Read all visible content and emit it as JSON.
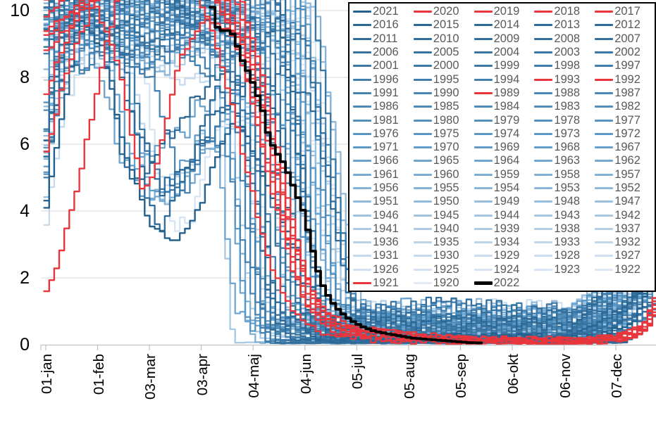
{
  "chart_data": {
    "type": "line",
    "title": "",
    "description_visible": "Seasonal curves, one line per year 1920-2021 in blue shades, selected years in red, year 2022 as thick black line",
    "y_axis": {
      "tick_labels": [
        "10",
        "8",
        "6",
        "4",
        "2",
        "0"
      ],
      "tick_values": [
        10,
        8,
        6,
        4,
        2,
        0
      ],
      "min": 0,
      "max": 10,
      "grid": true
    },
    "x_axis": {
      "tick_labels": [
        "01-jan",
        "01-feb",
        "03-mar",
        "03-apr",
        "04-maj",
        "04-jun",
        "05-jul",
        "05-aug",
        "05-sep",
        "06-okt",
        "06-nov",
        "07-dec"
      ],
      "tick_days": [
        1,
        32,
        62,
        93,
        124,
        155,
        186,
        217,
        248,
        279,
        310,
        341
      ]
    },
    "legend": {
      "position": "top-right",
      "columns": 5,
      "labels": [
        "2021",
        "2020",
        "2019",
        "2018",
        "2017",
        "2016",
        "2015",
        "2014",
        "2013",
        "2012",
        "2011",
        "2010",
        "2009",
        "2008",
        "2007",
        "2006",
        "2005",
        "2004",
        "2003",
        "2002",
        "2001",
        "2000",
        "1999",
        "1998",
        "1997",
        "1996",
        "1995",
        "1994",
        "1993",
        "1992",
        "1991",
        "1990",
        "1989",
        "1988",
        "1987",
        "1986",
        "1985",
        "1984",
        "1983",
        "1982",
        "1981",
        "1980",
        "1979",
        "1978",
        "1977",
        "1976",
        "1975",
        "1974",
        "1973",
        "1972",
        "1971",
        "1970",
        "1969",
        "1968",
        "1967",
        "1966",
        "1965",
        "1964",
        "1963",
        "1962",
        "1961",
        "1960",
        "1959",
        "1958",
        "1957",
        "1956",
        "1955",
        "1954",
        "1953",
        "1952",
        "1951",
        "1950",
        "1949",
        "1948",
        "1947",
        "1946",
        "1945",
        "1944",
        "1943",
        "1942",
        "1941",
        "1940",
        "1939",
        "1938",
        "1937",
        "1936",
        "1935",
        "1934",
        "1933",
        "1932",
        "1931",
        "1930",
        "1929",
        "1928",
        "1927",
        "1926",
        "1925",
        "1924",
        "1923",
        "1922",
        "1921",
        "1920",
        "2022"
      ]
    },
    "red_years": [
      "2020",
      "2019",
      "2018",
      "2017",
      "1993",
      "1992",
      "1989",
      "1921"
    ],
    "black_year": "2022",
    "blue_year_range": [
      1920,
      2021
    ],
    "colors": {
      "red": "#E8363C",
      "black": "#000000",
      "blue_new": "#24618E",
      "blue_mid": "#5E9BC9",
      "blue_old": "#E0EAF7",
      "legend_text": "#595959",
      "grid": "#DADADA",
      "axis": "#BFBFBF"
    },
    "series": [
      {
        "name": "2021",
        "color_role": "blue",
        "points": [
          [
            0,
            4.2
          ],
          [
            8,
            6.4
          ],
          [
            20,
            9.8
          ],
          [
            34,
            8.8
          ],
          [
            48,
            5.6
          ],
          [
            62,
            3.6
          ],
          [
            78,
            3.1
          ],
          [
            92,
            4.2
          ],
          [
            106,
            6.2
          ],
          [
            114,
            6.8
          ],
          [
            126,
            5.6
          ],
          [
            140,
            3.8
          ],
          [
            152,
            2.4
          ],
          [
            164,
            1.2
          ],
          [
            178,
            0.5
          ],
          [
            230,
            0.25
          ],
          [
            330,
            0.2
          ],
          [
            352,
            0.8
          ],
          [
            366,
            2.4
          ]
        ]
      },
      {
        "name": "1921",
        "color_role": "red",
        "points": [
          [
            0,
            1.6
          ],
          [
            8,
            2.6
          ],
          [
            16,
            4.2
          ],
          [
            26,
            6.5
          ],
          [
            36,
            9.0
          ],
          [
            44,
            10.6
          ],
          [
            70,
            11.4
          ],
          [
            100,
            11.0
          ],
          [
            114,
            9.6
          ],
          [
            124,
            7.8
          ],
          [
            132,
            6.0
          ],
          [
            140,
            4.0
          ],
          [
            148,
            2.2
          ],
          [
            156,
            1.1
          ],
          [
            166,
            0.5
          ],
          [
            190,
            0.15
          ],
          [
            260,
            0.1
          ],
          [
            320,
            0.1
          ],
          [
            348,
            0.3
          ],
          [
            360,
            0.9
          ],
          [
            366,
            1.9
          ]
        ]
      },
      {
        "name": "1989",
        "color_role": "red",
        "points": [
          [
            0,
            9.2
          ],
          [
            26,
            10.6
          ],
          [
            44,
            8.2
          ],
          [
            58,
            4.4
          ],
          [
            68,
            5.8
          ],
          [
            80,
            8.6
          ],
          [
            96,
            9.8
          ],
          [
            118,
            9.2
          ],
          [
            134,
            6.2
          ],
          [
            148,
            3.0
          ],
          [
            160,
            1.3
          ],
          [
            174,
            0.5
          ],
          [
            240,
            0.15
          ],
          [
            320,
            0.1
          ],
          [
            356,
            0.4
          ],
          [
            366,
            1.0
          ]
        ]
      },
      {
        "name": "1992",
        "color_role": "red",
        "points": [
          [
            0,
            9.4
          ],
          [
            50,
            11.0
          ],
          [
            110,
            10.8
          ],
          [
            126,
            8.4
          ],
          [
            140,
            5.0
          ],
          [
            152,
            2.4
          ],
          [
            162,
            1.1
          ],
          [
            176,
            0.5
          ],
          [
            250,
            0.15
          ],
          [
            330,
            0.12
          ],
          [
            356,
            0.4
          ],
          [
            366,
            1.1
          ]
        ]
      },
      {
        "name": "1993",
        "color_role": "red",
        "points": [
          [
            0,
            10.4
          ],
          [
            60,
            11.2
          ],
          [
            116,
            10.5
          ],
          [
            134,
            7.0
          ],
          [
            148,
            3.4
          ],
          [
            158,
            1.6
          ],
          [
            170,
            0.7
          ],
          [
            196,
            0.25
          ],
          [
            300,
            0.12
          ],
          [
            336,
            0.1
          ],
          [
            358,
            0.6
          ],
          [
            366,
            1.4
          ]
        ]
      },
      {
        "name": "2017",
        "color_role": "red",
        "points": [
          [
            0,
            5.8
          ],
          [
            12,
            8.2
          ],
          [
            34,
            10.8
          ],
          [
            104,
            10.4
          ],
          [
            124,
            8.2
          ],
          [
            140,
            4.6
          ],
          [
            152,
            2.4
          ],
          [
            164,
            1.1
          ],
          [
            180,
            0.5
          ],
          [
            230,
            0.2
          ],
          [
            310,
            0.1
          ],
          [
            354,
            0.3
          ],
          [
            366,
            1.6
          ]
        ]
      },
      {
        "name": "2018",
        "color_role": "red",
        "points": [
          [
            0,
            7.6
          ],
          [
            24,
            10.6
          ],
          [
            96,
            10.9
          ],
          [
            116,
            8.8
          ],
          [
            132,
            5.2
          ],
          [
            146,
            2.4
          ],
          [
            158,
            1.0
          ],
          [
            176,
            0.4
          ],
          [
            260,
            0.12
          ],
          [
            344,
            0.15
          ],
          [
            360,
            0.6
          ],
          [
            366,
            2.1
          ]
        ]
      },
      {
        "name": "2019",
        "color_role": "red",
        "points": [
          [
            0,
            8.8
          ],
          [
            40,
            11.0
          ],
          [
            100,
            10.6
          ],
          [
            120,
            8.0
          ],
          [
            136,
            4.6
          ],
          [
            150,
            2.0
          ],
          [
            162,
            0.9
          ],
          [
            178,
            0.4
          ],
          [
            240,
            0.12
          ],
          [
            330,
            0.1
          ],
          [
            352,
            0.25
          ],
          [
            366,
            1.5
          ]
        ]
      },
      {
        "name": "2020",
        "color_role": "red",
        "points": [
          [
            0,
            9.8
          ],
          [
            30,
            11.2
          ],
          [
            88,
            10.9
          ],
          [
            104,
            8.6
          ],
          [
            118,
            5.6
          ],
          [
            130,
            3.0
          ],
          [
            142,
            1.4
          ],
          [
            154,
            0.6
          ],
          [
            170,
            0.25
          ],
          [
            220,
            0.1
          ],
          [
            300,
            0.08
          ],
          [
            340,
            0.1
          ],
          [
            358,
            0.5
          ],
          [
            366,
            1.2
          ]
        ]
      },
      {
        "name": "2022",
        "color_role": "black",
        "points": [
          [
            99,
            10.1
          ],
          [
            102,
            9.5
          ],
          [
            105,
            9.4
          ],
          [
            108,
            9.4
          ],
          [
            111,
            9.3
          ],
          [
            113,
            9.1
          ],
          [
            116,
            8.6
          ],
          [
            119,
            8.3
          ],
          [
            121,
            8.1
          ],
          [
            125,
            7.6
          ],
          [
            129,
            7.0
          ],
          [
            131,
            6.6
          ],
          [
            133,
            6.1
          ],
          [
            136,
            5.9
          ],
          [
            138,
            5.7
          ],
          [
            142,
            5.4
          ],
          [
            146,
            4.9
          ],
          [
            150,
            4.4
          ],
          [
            154,
            3.9
          ],
          [
            157,
            3.2
          ],
          [
            160,
            2.6
          ],
          [
            163,
            2.0
          ],
          [
            166,
            1.65
          ],
          [
            170,
            1.3
          ],
          [
            175,
            1.0
          ],
          [
            181,
            0.75
          ],
          [
            188,
            0.55
          ],
          [
            196,
            0.4
          ],
          [
            207,
            0.3
          ],
          [
            218,
            0.2
          ],
          [
            230,
            0.15
          ],
          [
            243,
            0.1
          ],
          [
            253,
            0.06
          ],
          [
            263,
            0.05
          ]
        ]
      }
    ]
  }
}
